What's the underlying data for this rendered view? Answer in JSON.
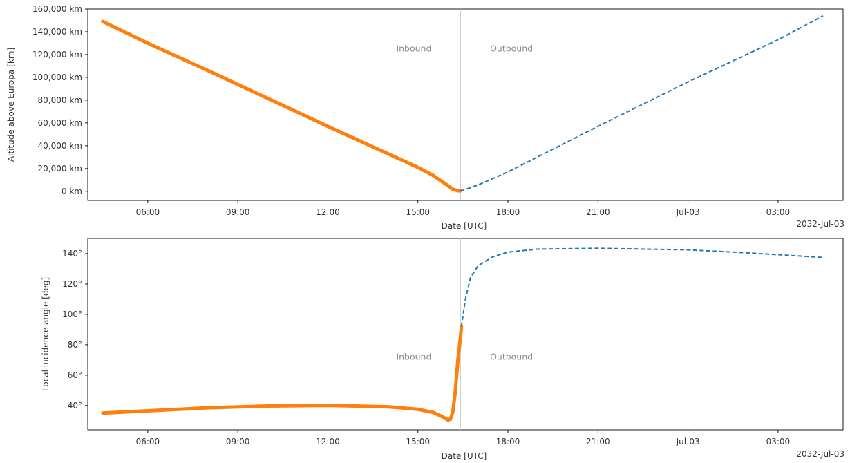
{
  "chart_data": [
    {
      "type": "line",
      "xlabel": "Date [UTC]",
      "ylabel": "Altitude above Europa [km]",
      "x_offset_label": "2032-Jul-03",
      "x_range": [
        "2032-07-02T04:00",
        "2032-07-03T05:10"
      ],
      "xticks": [
        {
          "t": "2032-07-02T06:00",
          "label": "06:00"
        },
        {
          "t": "2032-07-02T09:00",
          "label": "09:00"
        },
        {
          "t": "2032-07-02T12:00",
          "label": "12:00"
        },
        {
          "t": "2032-07-02T15:00",
          "label": "15:00"
        },
        {
          "t": "2032-07-02T18:00",
          "label": "18:00"
        },
        {
          "t": "2032-07-02T21:00",
          "label": "21:00"
        },
        {
          "t": "2032-07-03T00:00",
          "label": "Jul-03"
        },
        {
          "t": "2032-07-03T03:00",
          "label": "03:00"
        }
      ],
      "ylim": [
        -8000,
        160000
      ],
      "yticks": [
        {
          "v": 0,
          "label": "0 km"
        },
        {
          "v": 20000,
          "label": "20,000 km"
        },
        {
          "v": 40000,
          "label": "40,000 km"
        },
        {
          "v": 60000,
          "label": "60,000 km"
        },
        {
          "v": 80000,
          "label": "80,000 km"
        },
        {
          "v": 100000,
          "label": "100,000 km"
        },
        {
          "v": 120000,
          "label": "120,000 km"
        },
        {
          "v": 140000,
          "label": "140,000 km"
        },
        {
          "v": 160000,
          "label": "160,000 km"
        }
      ],
      "vline": "2032-07-02T16:25",
      "annotations": [
        {
          "text": "Inbound",
          "t": "2032-07-02T14:52",
          "v": 125000
        },
        {
          "text": "Outbound",
          "t": "2032-07-02T18:07",
          "v": 125000
        }
      ],
      "series": [
        {
          "color": "#ff7f0e",
          "style": "solid",
          "points": [
            [
              "2032-07-02T04:30",
              149000
            ],
            [
              "2032-07-02T06:00",
              130000
            ],
            [
              "2032-07-02T08:00",
              106000
            ],
            [
              "2032-07-02T10:00",
              81500
            ],
            [
              "2032-07-02T12:00",
              57000
            ],
            [
              "2032-07-02T14:00",
              33000
            ],
            [
              "2032-07-02T15:00",
              21000
            ],
            [
              "2032-07-02T15:30",
              14000
            ],
            [
              "2032-07-02T16:00",
              5000
            ],
            [
              "2032-07-02T16:10",
              1800
            ],
            [
              "2032-07-02T16:20",
              500
            ],
            [
              "2032-07-02T16:25",
              400
            ]
          ]
        },
        {
          "color": "#1f77b4",
          "style": "dashed",
          "points": [
            [
              "2032-07-02T16:25",
              400
            ],
            [
              "2032-07-02T16:30",
              900
            ],
            [
              "2032-07-02T17:00",
              5500
            ],
            [
              "2032-07-02T18:00",
              17000
            ],
            [
              "2032-07-02T21:00",
              57000
            ],
            [
              "2032-07-03T00:00",
              96000
            ],
            [
              "2032-07-03T03:00",
              133000
            ],
            [
              "2032-07-03T04:30",
              154000
            ]
          ]
        }
      ]
    },
    {
      "type": "line",
      "xlabel": "Date [UTC]",
      "ylabel": "Local incidence angle [deg]",
      "x_offset_label": "2032-Jul-03",
      "x_range": [
        "2032-07-02T04:00",
        "2032-07-03T05:10"
      ],
      "xticks": [
        {
          "t": "2032-07-02T06:00",
          "label": "06:00"
        },
        {
          "t": "2032-07-02T09:00",
          "label": "09:00"
        },
        {
          "t": "2032-07-02T12:00",
          "label": "12:00"
        },
        {
          "t": "2032-07-02T15:00",
          "label": "15:00"
        },
        {
          "t": "2032-07-02T18:00",
          "label": "18:00"
        },
        {
          "t": "2032-07-02T21:00",
          "label": "21:00"
        },
        {
          "t": "2032-07-03T00:00",
          "label": "Jul-03"
        },
        {
          "t": "2032-07-03T03:00",
          "label": "03:00"
        }
      ],
      "ylim": [
        24,
        150
      ],
      "yticks": [
        {
          "v": 40,
          "label": "40°"
        },
        {
          "v": 60,
          "label": "60°"
        },
        {
          "v": 80,
          "label": "80°"
        },
        {
          "v": 100,
          "label": "100°"
        },
        {
          "v": 120,
          "label": "120°"
        },
        {
          "v": 140,
          "label": "140°"
        }
      ],
      "vline": "2032-07-02T16:25",
      "annotations": [
        {
          "text": "Inbound",
          "t": "2032-07-02T14:52",
          "v": 72
        },
        {
          "text": "Outbound",
          "t": "2032-07-02T18:07",
          "v": 72
        }
      ],
      "series": [
        {
          "color": "#ff7f0e",
          "style": "solid",
          "points": [
            [
              "2032-07-02T04:30",
              35
            ],
            [
              "2032-07-02T06:00",
              36.5
            ],
            [
              "2032-07-02T08:00",
              38.5
            ],
            [
              "2032-07-02T10:00",
              39.7
            ],
            [
              "2032-07-02T12:00",
              40.1
            ],
            [
              "2032-07-02T14:00",
              39.2
            ],
            [
              "2032-07-02T15:00",
              37.5
            ],
            [
              "2032-07-02T15:30",
              35.5
            ],
            [
              "2032-07-02T15:50",
              32.5
            ],
            [
              "2032-07-02T16:00",
              30.5
            ],
            [
              "2032-07-02T16:05",
              31
            ],
            [
              "2032-07-02T16:10",
              36
            ],
            [
              "2032-07-02T16:15",
              50
            ],
            [
              "2032-07-02T16:20",
              70
            ],
            [
              "2032-07-02T16:25",
              85
            ],
            [
              "2032-07-02T16:27",
              92
            ]
          ]
        },
        {
          "color": "#1f77b4",
          "style": "dashed",
          "points": [
            [
              "2032-07-02T16:27",
              92
            ],
            [
              "2032-07-02T16:35",
              110
            ],
            [
              "2032-07-02T16:45",
              124
            ],
            [
              "2032-07-02T17:00",
              132
            ],
            [
              "2032-07-02T17:30",
              138
            ],
            [
              "2032-07-02T18:00",
              141
            ],
            [
              "2032-07-02T19:00",
              143
            ],
            [
              "2032-07-02T21:00",
              143.5
            ],
            [
              "2032-07-03T00:00",
              142.5
            ],
            [
              "2032-07-03T02:00",
              140.5
            ],
            [
              "2032-07-03T04:30",
              137.5
            ]
          ]
        }
      ]
    }
  ]
}
